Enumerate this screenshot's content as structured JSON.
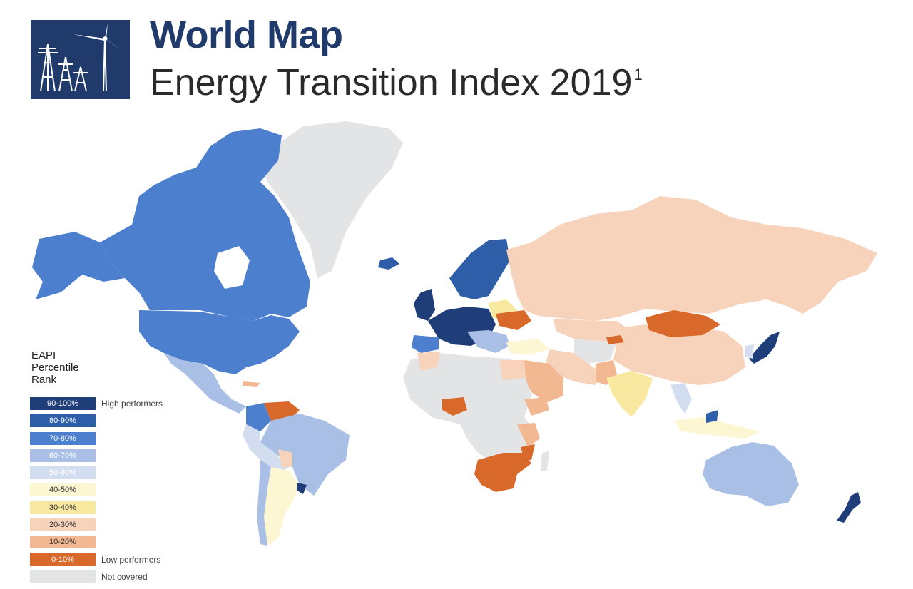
{
  "header": {
    "title": "World Map",
    "subtitle": "Energy Transition Index 2019",
    "footnote_marker": "1"
  },
  "legend": {
    "title_lines": [
      "EAPI",
      "Percentile",
      "Rank"
    ],
    "bins": [
      {
        "label": "90-100%",
        "color": "#1f3d78",
        "text": "#ffffff"
      },
      {
        "label": "80-90%",
        "color": "#2f5ea8",
        "text": "#ffffff"
      },
      {
        "label": "70-80%",
        "color": "#4d7fcf",
        "text": "#ffffff"
      },
      {
        "label": "60-70%",
        "color": "#a9bfe6",
        "text": "#ffffff"
      },
      {
        "label": "50-60%",
        "color": "#d3ddf0",
        "text": "#ffffff"
      },
      {
        "label": "40-50%",
        "color": "#fdf6d3",
        "text": "#333333"
      },
      {
        "label": "30-40%",
        "color": "#f9e9a0",
        "text": "#333333"
      },
      {
        "label": "20-30%",
        "color": "#f8d3bc",
        "text": "#333333"
      },
      {
        "label": "10-20%",
        "color": "#f2b892",
        "text": "#333333"
      },
      {
        "label": "0-10%",
        "color": "#d9692a",
        "text": "#ffffff"
      }
    ],
    "high_label": "High performers",
    "low_label": "Low performers",
    "not_covered": {
      "label": "Not covered",
      "color": "#e3e4e6"
    }
  },
  "map_regions": [
    {
      "name": "Canada / Arctic Archipelago",
      "bin": "70-80%"
    },
    {
      "name": "Alaska / USA",
      "bin": "70-80%"
    },
    {
      "name": "Greenland",
      "bin": "Not covered"
    },
    {
      "name": "Iceland",
      "bin": "80-90%"
    },
    {
      "name": "Scandinavia",
      "bin": "80-90%"
    },
    {
      "name": "Western Europe",
      "bin": "90-100%"
    },
    {
      "name": "Russia",
      "bin": "20-30%"
    },
    {
      "name": "Ukraine",
      "bin": "0-10%"
    },
    {
      "name": "Mongolia",
      "bin": "0-10%"
    },
    {
      "name": "China",
      "bin": "20-30%"
    },
    {
      "name": "India",
      "bin": "30-40%"
    },
    {
      "name": "Japan",
      "bin": "80-90%"
    },
    {
      "name": "Mexico",
      "bin": "60-70%"
    },
    {
      "name": "Venezuela",
      "bin": "0-10%"
    },
    {
      "name": "Brazil",
      "bin": "60-70%"
    },
    {
      "name": "Uruguay",
      "bin": "90-100%"
    },
    {
      "name": "Argentina",
      "bin": "40-50%"
    },
    {
      "name": "Nigeria",
      "bin": "0-10%"
    },
    {
      "name": "South Africa",
      "bin": "0-10%"
    },
    {
      "name": "Central Africa",
      "bin": "Not covered"
    },
    {
      "name": "Australia",
      "bin": "60-70%"
    },
    {
      "name": "New Zealand",
      "bin": "90-100%"
    }
  ]
}
